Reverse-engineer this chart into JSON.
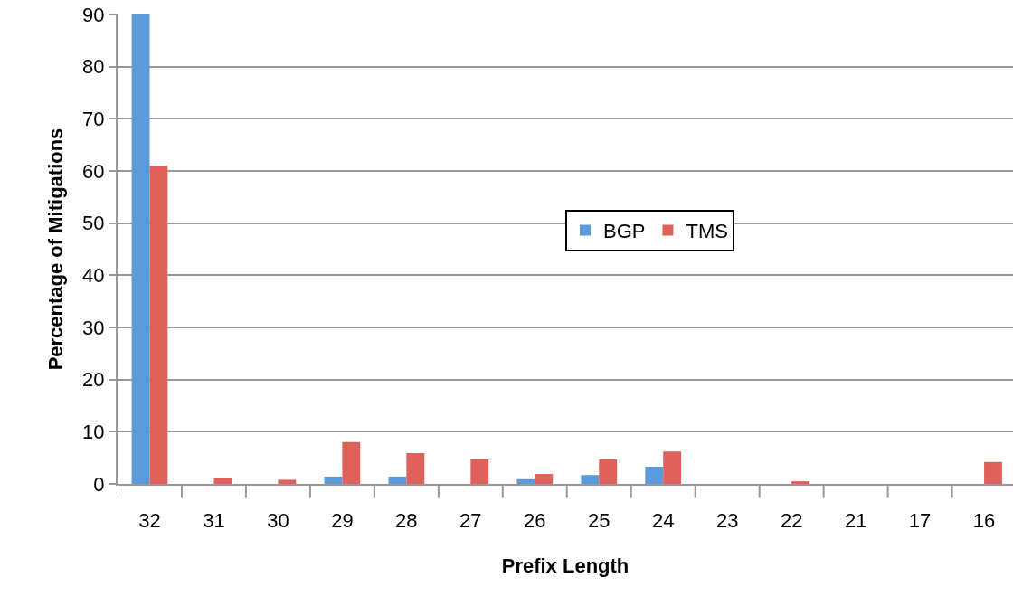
{
  "chart_data": {
    "type": "bar",
    "xlabel": "Prefix Length",
    "ylabel": "Percentage of Mitigations",
    "categories": [
      "32",
      "31",
      "30",
      "29",
      "28",
      "27",
      "26",
      "25",
      "24",
      "23",
      "22",
      "21",
      "17",
      "16"
    ],
    "series": [
      {
        "name": "BGP",
        "color": "#5b9bdb",
        "values": [
          90,
          0,
          0,
          1.4,
          1.4,
          0,
          0.9,
          1.7,
          3.3,
          0,
          0,
          0,
          0,
          0
        ]
      },
      {
        "name": "TMS",
        "color": "#e0605a",
        "values": [
          61,
          1.2,
          0.8,
          8,
          5.9,
          4.7,
          1.9,
          4.7,
          6.2,
          0,
          0.5,
          0,
          0,
          4.2
        ]
      }
    ],
    "ylim": [
      0,
      90
    ],
    "yticks": [
      0,
      10,
      20,
      30,
      40,
      50,
      60,
      70,
      80,
      90
    ],
    "grid": "y",
    "legend": "center"
  }
}
